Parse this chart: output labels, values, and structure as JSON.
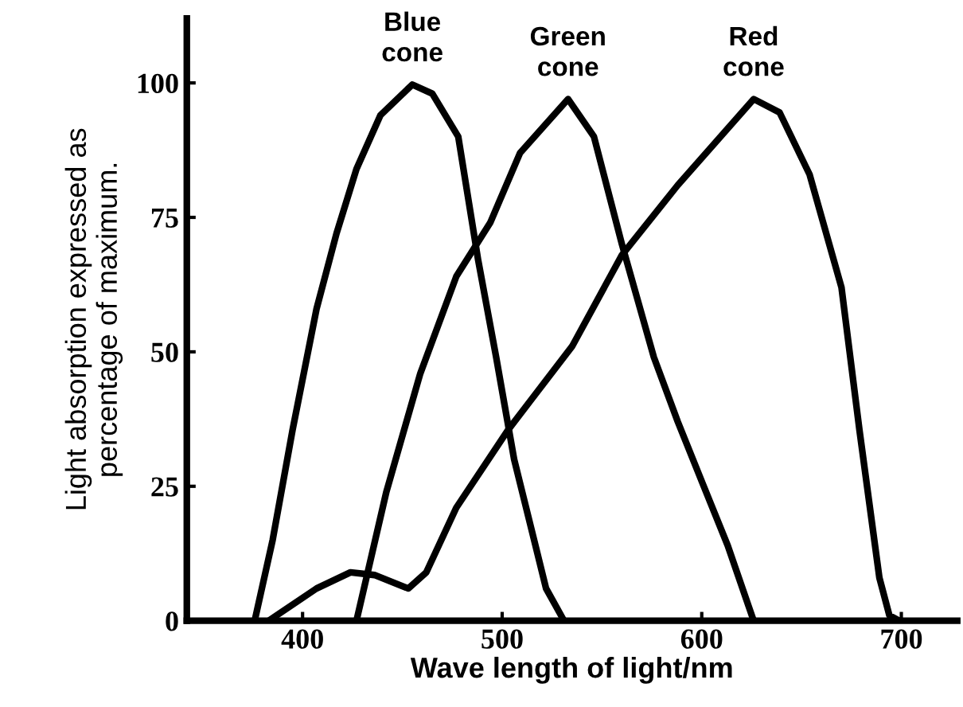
{
  "chart_data": {
    "type": "line",
    "xlabel": "Wave length of light/nm",
    "ylabel": "Light absorption expressed as\npercentage of maximum.",
    "xlim": [
      342,
      728
    ],
    "ylim": [
      0,
      112
    ],
    "xticks": [
      400,
      500,
      600,
      700
    ],
    "yticks": [
      0,
      25,
      50,
      75,
      100
    ],
    "grid": false,
    "legend": false,
    "marker": "none",
    "line_style": "solid",
    "series": [
      {
        "name": "Blue\ncone",
        "color": "#000000",
        "x": [
          376,
          385,
          395,
          407,
          417,
          427,
          439,
          455,
          465,
          478,
          488,
          497,
          506,
          516,
          522,
          531
        ],
        "values": [
          0,
          15,
          35.5,
          58,
          72,
          84,
          94,
          99.7,
          98,
          90,
          67,
          49,
          30,
          15,
          6,
          0
        ]
      },
      {
        "name": "Green\ncone",
        "color": "#000000",
        "x": [
          427,
          442,
          459,
          477,
          494,
          509,
          533,
          546,
          560,
          576,
          588,
          601,
          613,
          626
        ],
        "values": [
          0,
          24,
          46,
          64,
          74,
          87,
          97,
          90,
          70,
          49,
          37,
          25,
          14,
          0
        ]
      },
      {
        "name": "Red\ncone",
        "color": "#000000",
        "x": [
          383,
          407,
          424,
          436,
          453,
          462,
          477,
          503,
          535,
          560,
          588,
          626,
          639,
          654,
          670,
          679,
          689,
          694,
          699
        ],
        "values": [
          0,
          6,
          9,
          8.5,
          6,
          9,
          21,
          35.5,
          51,
          68,
          81,
          97,
          94.5,
          83,
          62,
          35.5,
          8,
          1,
          0
        ]
      }
    ]
  }
}
